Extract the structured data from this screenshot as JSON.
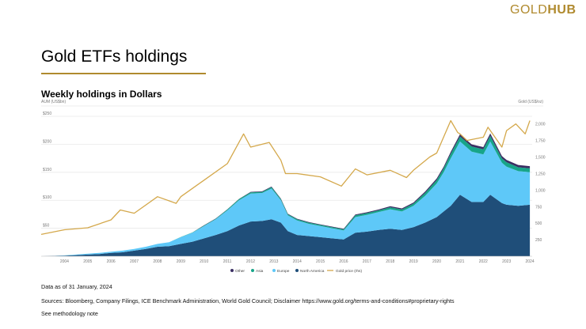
{
  "logo": {
    "text_gold": "GOLD",
    "text_hub": "HUB"
  },
  "page_title": "Gold ETFs holdings",
  "chart_title": "Weekly holdings in Dollars",
  "footer": {
    "data_as_of": "Data as of 31 January, 2024",
    "sources": "Sources: Bloomberg, Company Filings, ICE Benchmark Administration, World Gold Council; Disclaimer https://www.gold.org/terms-and-conditions#proprietary-rights",
    "methodology": "See methodology note"
  },
  "colors": {
    "north_america": "#1f4e79",
    "europe": "#5ec8f8",
    "asia": "#17a589",
    "other": "#3b2f63",
    "gold_line": "#d4a84b",
    "grid": "#e6e6e6",
    "axis_text": "#777777"
  },
  "chart_data": {
    "type": "area",
    "title": "Weekly holdings in Dollars",
    "ylabel": "AUM (US$bn)",
    "y2label": "Gold (US$/oz)",
    "ylim": [
      0,
      260
    ],
    "y2lim": [
      0,
      2200
    ],
    "yticks": [
      {
        "value": 50,
        "label": "$50"
      },
      {
        "value": 100,
        "label": "$100"
      },
      {
        "value": 150,
        "label": "$150"
      },
      {
        "value": 200,
        "label": "$200"
      },
      {
        "value": 250,
        "label": "$250"
      }
    ],
    "y2ticks": [
      {
        "value": 250,
        "label": "250"
      },
      {
        "value": 500,
        "label": "500"
      },
      {
        "value": 750,
        "label": "750"
      },
      {
        "value": 1000,
        "label": "1,000"
      },
      {
        "value": 1250,
        "label": "1,250"
      },
      {
        "value": 1500,
        "label": "1,500"
      },
      {
        "value": 1750,
        "label": "1,750"
      },
      {
        "value": 2000,
        "label": "2,000"
      }
    ],
    "xlim": [
      2003.0,
      2024.1
    ],
    "xticks": [
      "2004",
      "2005",
      "2006",
      "2007",
      "2008",
      "2009",
      "2010",
      "2011",
      "2012",
      "2013",
      "2014",
      "2015",
      "2016",
      "2017",
      "2018",
      "2019",
      "2020",
      "2021",
      "2022",
      "2023",
      "2024"
    ],
    "x": [
      2003.0,
      2003.5,
      2004.0,
      2004.5,
      2005.0,
      2005.5,
      2006.0,
      2006.5,
      2007.0,
      2007.5,
      2008.0,
      2008.5,
      2009.0,
      2009.5,
      2010.0,
      2010.5,
      2011.0,
      2011.5,
      2012.0,
      2012.5,
      2012.9,
      2013.3,
      2013.6,
      2014.0,
      2014.5,
      2015.0,
      2015.5,
      2016.0,
      2016.5,
      2017.0,
      2017.5,
      2018.0,
      2018.5,
      2019.0,
      2019.5,
      2020.0,
      2020.3,
      2020.6,
      2021.0,
      2021.5,
      2022.0,
      2022.3,
      2022.8,
      2023.0,
      2023.5,
      2024.0
    ],
    "series": [
      {
        "name": "North America",
        "values": [
          0,
          0.5,
          1,
          2,
          3,
          4,
          6,
          7,
          10,
          13,
          17,
          18,
          22,
          26,
          32,
          38,
          45,
          55,
          62,
          63,
          66,
          60,
          45,
          38,
          36,
          34,
          32,
          30,
          42,
          44,
          47,
          49,
          47,
          52,
          60,
          70,
          80,
          90,
          110,
          97,
          97,
          110,
          95,
          92,
          90,
          92
        ]
      },
      {
        "name": "Europe",
        "values": [
          0,
          0,
          0.5,
          1,
          1.5,
          2,
          2,
          3,
          3,
          4,
          5,
          7,
          12,
          16,
          22,
          28,
          37,
          45,
          50,
          50,
          55,
          40,
          28,
          26,
          22,
          20,
          18,
          16,
          28,
          30,
          32,
          35,
          33,
          38,
          48,
          60,
          70,
          85,
          95,
          90,
          85,
          95,
          72,
          68,
          62,
          58
        ]
      },
      {
        "name": "Asia",
        "values": [
          0,
          0,
          0,
          0,
          0,
          0,
          0,
          0,
          0,
          0,
          0,
          0,
          0.5,
          0.5,
          1,
          1,
          1.5,
          2,
          2,
          2,
          2.5,
          2,
          2,
          2,
          2,
          2,
          2,
          2,
          3,
          3,
          3,
          3.5,
          3.5,
          4,
          5,
          6,
          7,
          8,
          9,
          9,
          9,
          10,
          8,
          8,
          7,
          7
        ]
      },
      {
        "name": "Other",
        "values": [
          0,
          0,
          0,
          0,
          0,
          0,
          0,
          0,
          0,
          0,
          0,
          0,
          0,
          0,
          0.5,
          0.5,
          0.5,
          0.5,
          1,
          1,
          1,
          1,
          1,
          1,
          1,
          1,
          1,
          1,
          1.5,
          1.5,
          1.5,
          2,
          2,
          2,
          2.5,
          3,
          3,
          3.5,
          4,
          4,
          4,
          4.5,
          4,
          4,
          4,
          4
        ]
      }
    ],
    "gold_price": {
      "name": "Gold price (rhs)",
      "x": [
        2003.0,
        2004.0,
        2005.0,
        2006.0,
        2006.4,
        2007.0,
        2008.0,
        2008.8,
        2009.0,
        2010.0,
        2011.0,
        2011.7,
        2012.0,
        2012.8,
        2013.3,
        2013.5,
        2014.0,
        2015.0,
        2015.9,
        2016.5,
        2017.0,
        2018.0,
        2018.7,
        2019.0,
        2019.7,
        2020.0,
        2020.6,
        2020.9,
        2021.0,
        2021.3,
        2022.0,
        2022.2,
        2022.8,
        2023.0,
        2023.4,
        2023.8,
        2024.0
      ],
      "values": [
        330,
        400,
        430,
        550,
        700,
        650,
        900,
        800,
        900,
        1150,
        1400,
        1850,
        1650,
        1720,
        1450,
        1250,
        1250,
        1200,
        1060,
        1320,
        1230,
        1300,
        1190,
        1300,
        1500,
        1560,
        2050,
        1870,
        1850,
        1750,
        1800,
        1950,
        1650,
        1900,
        2000,
        1850,
        2050
      ]
    },
    "legend": [
      {
        "name": "Other"
      },
      {
        "name": "Asia"
      },
      {
        "name": "Europe"
      },
      {
        "name": "North America"
      },
      {
        "name": "Gold price (rhs)"
      }
    ]
  }
}
